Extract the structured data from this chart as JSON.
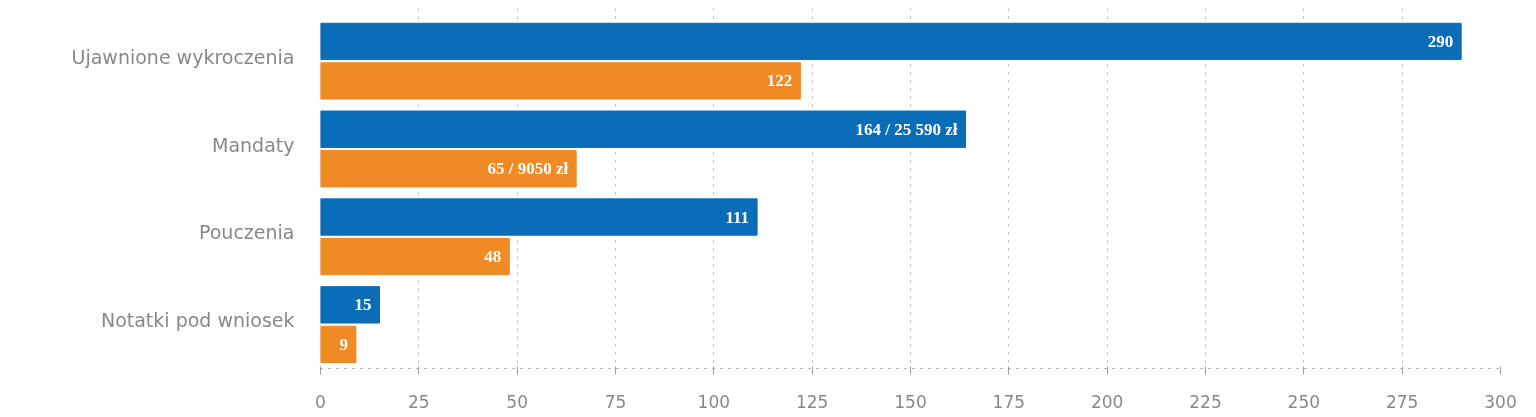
{
  "chart_data": {
    "type": "bar",
    "orientation": "horizontal",
    "categories": [
      "Ujawnione wykroczenia",
      "Mandaty",
      "Pouczenia",
      "Notatki pod wniosek"
    ],
    "series": [
      {
        "color": "#0b6db7",
        "values": [
          290,
          164,
          111,
          15
        ],
        "value_labels": [
          "290",
          "164 / 25 590 zł",
          "111",
          "15"
        ]
      },
      {
        "color": "#f08a24",
        "values": [
          122,
          65,
          48,
          9
        ],
        "value_labels": [
          "122",
          "65 / 9050 zł",
          "48",
          "9"
        ]
      }
    ],
    "xlim": [
      0,
      300
    ],
    "xticks": [
      0,
      25,
      50,
      75,
      100,
      125,
      150,
      175,
      200,
      225,
      250,
      275,
      300
    ],
    "grid": "x"
  }
}
